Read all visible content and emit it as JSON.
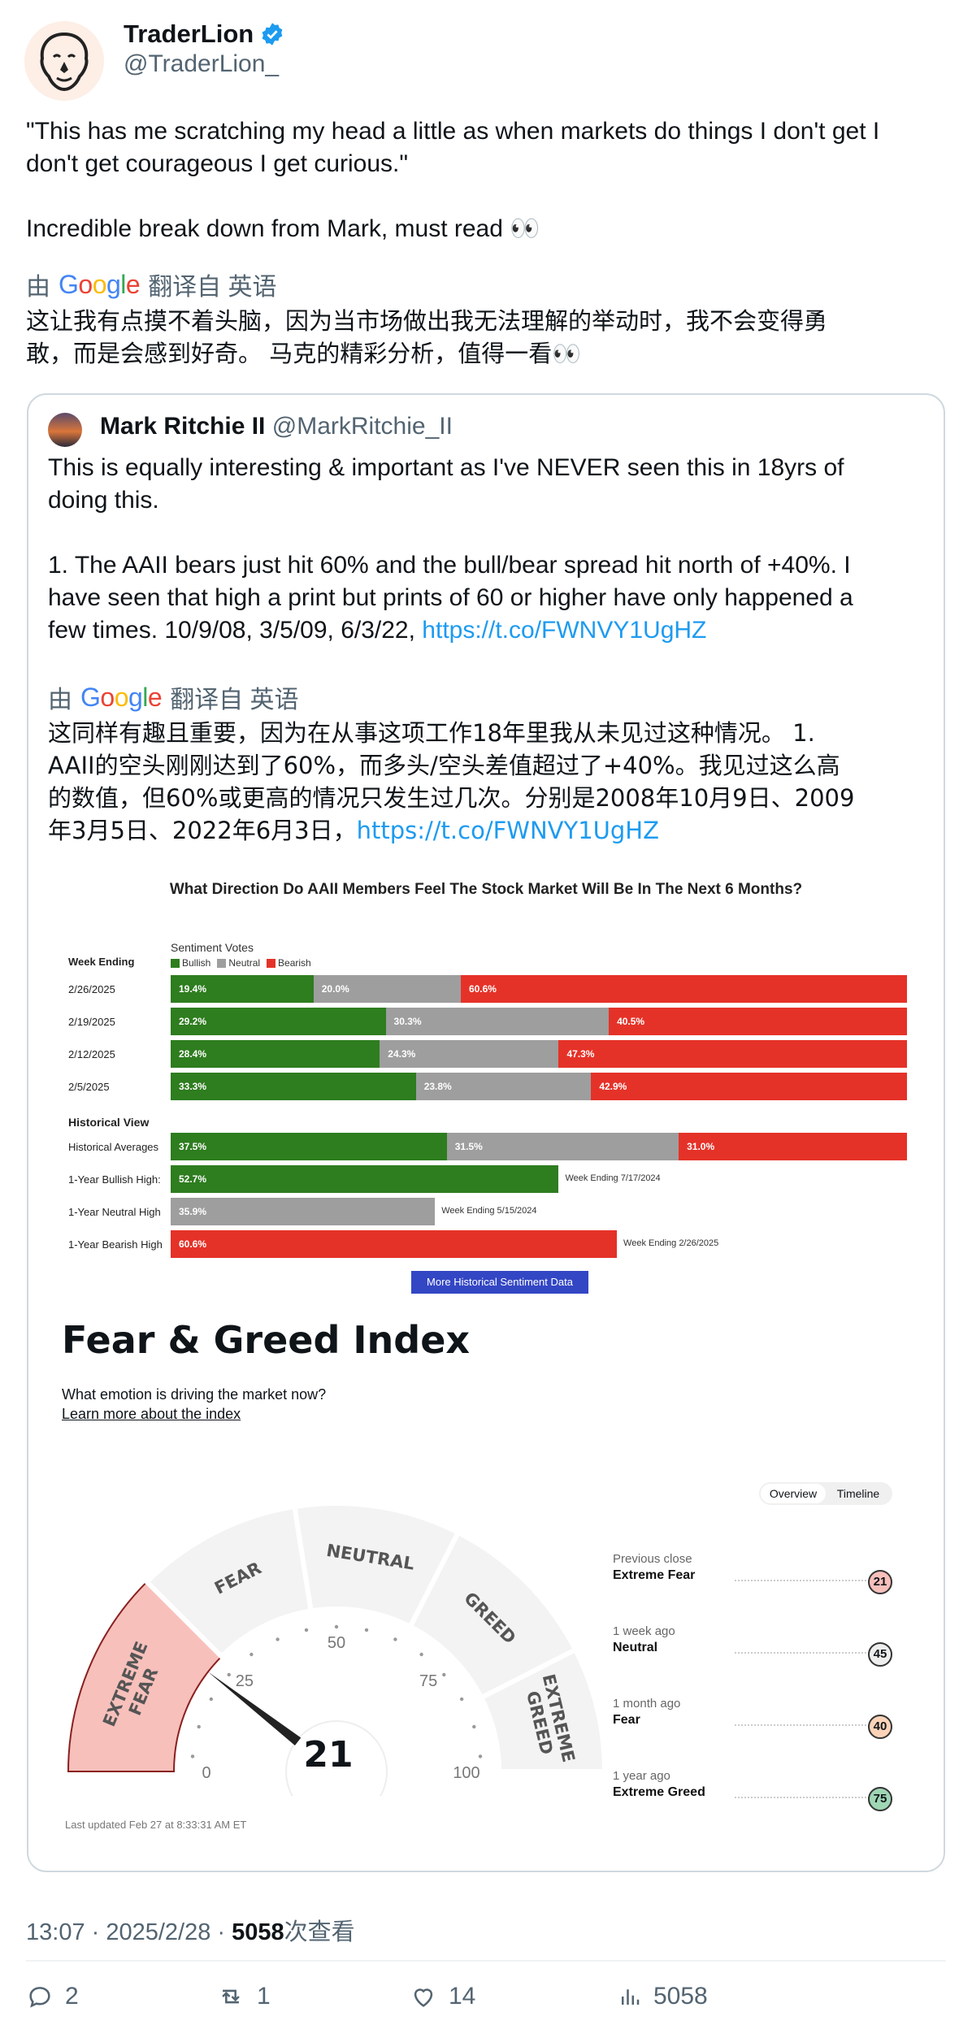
{
  "author": {
    "name": "TraderLion",
    "handle": "@TraderLion_"
  },
  "tweet": {
    "text_line1": "\"This has me scratching my head a little as when markets do things I don't get I",
    "text_line2": "don't get courageous I get curious.\"",
    "text_line3": "Incredible break down from Mark, must read 👀",
    "translate_prefix": "由",
    "translate_google": "Google",
    "translate_suffix": "翻译自 英语",
    "translated_line1": "这让我有点摸不着头脑，因为当市场做出我无法理解的举动时，我不会变得勇",
    "translated_line2": "敢，而是会感到好奇。 马克的精彩分析，值得一看👀"
  },
  "quote": {
    "name": "Mark Ritchie II",
    "handle": "@MarkRitchie_II",
    "line1": "This is equally interesting & important as I've NEVER seen this in 18yrs of",
    "line2": "doing this.",
    "line3": "1.  The AAII bears just hit 60% and the bull/bear spread hit north of +40%.  I",
    "line4": "have seen that high a print but prints of 60 or higher have only happened a",
    "line5": "few times.  10/9/08, 3/5/09, 6/3/22,",
    "link": "https://t.co/FWNVY1UgHZ",
    "translate_prefix": "由",
    "translate_google": "Google",
    "translate_suffix": "翻译自 英语",
    "t_line1": "这同样有趣且重要，因为在从事这项工作18年里我从未见过这种情况。 1.",
    "t_line2": "AAII的空头刚刚达到了60%，而多头/空头差值超过了+40%。我见过这么高",
    "t_line3": "的数值，但60%或更高的情况只发生过几次。分别是2008年10月9日、2009",
    "t_line4": "年3月5日、2022年6月3日，",
    "t_link": "https://t.co/FWNVY1UgHZ"
  },
  "aaii": {
    "title": "What Direction Do AAII Members Feel The Stock Market Will Be In The Next 6 Months?",
    "sentiment_votes": "Sentiment Votes",
    "week_ending": "Week Ending",
    "legend": [
      "Bullish",
      "Neutral",
      "Bearish"
    ],
    "colors": {
      "bullish": "#2e7d1f",
      "neutral": "#9e9e9e",
      "bearish": "#e53228"
    },
    "historical_view": "Historical View",
    "button": "More Historical Sentiment Data",
    "rows": [
      {
        "label": "2/26/2025",
        "bull": "19.4%",
        "neutral": "20.0%",
        "bear": "60.6%"
      },
      {
        "label": "2/19/2025",
        "bull": "29.2%",
        "neutral": "30.3%",
        "bear": "40.5%"
      },
      {
        "label": "2/12/2025",
        "bull": "28.4%",
        "neutral": "24.3%",
        "bear": "47.3%"
      },
      {
        "label": "2/5/2025",
        "bull": "33.3%",
        "neutral": "23.8%",
        "bear": "42.9%"
      }
    ],
    "hist_avg": {
      "label": "Historical Averages",
      "bull": "37.5%",
      "neutral": "31.5%",
      "bear": "31.0%"
    },
    "highs": [
      {
        "label": "1-Year Bullish High:",
        "value": "52.7%",
        "note": "Week Ending 7/17/2024"
      },
      {
        "label": "1-Year Neutral High",
        "value": "35.9%",
        "note": "Week Ending 5/15/2024"
      },
      {
        "label": "1-Year Bearish High",
        "value": "60.6%",
        "note": "Week Ending 2/26/2025"
      }
    ]
  },
  "fear_greed": {
    "title": "Fear & Greed Index",
    "subtitle": "What emotion is driving the market now?",
    "learn_more": "Learn more about the index",
    "tabs": [
      "Overview",
      "Timeline"
    ],
    "zones": [
      "EXTREME FEAR",
      "FEAR",
      "NEUTRAL",
      "GREED",
      "EXTREME GREED"
    ],
    "ticks": [
      "0",
      "25",
      "50",
      "75",
      "100"
    ],
    "value": "21",
    "value_number": 21,
    "updated": "Last updated Feb 27 at 8:33:31 AM ET",
    "history": [
      {
        "when": "Previous close",
        "label": "Extreme Fear",
        "value": "21"
      },
      {
        "when": "1 week ago",
        "label": "Neutral",
        "value": "45"
      },
      {
        "when": "1 month ago",
        "label": "Fear",
        "value": "40"
      },
      {
        "when": "1 year ago",
        "label": "Extreme Greed",
        "value": "75"
      }
    ]
  },
  "meta": {
    "time": "13:07 · 2025/2/28 · ",
    "views": "5058",
    "views_suffix": "次查看"
  },
  "actions": {
    "replies": "2",
    "retweets": "1",
    "likes": "14",
    "views": "5058"
  }
}
